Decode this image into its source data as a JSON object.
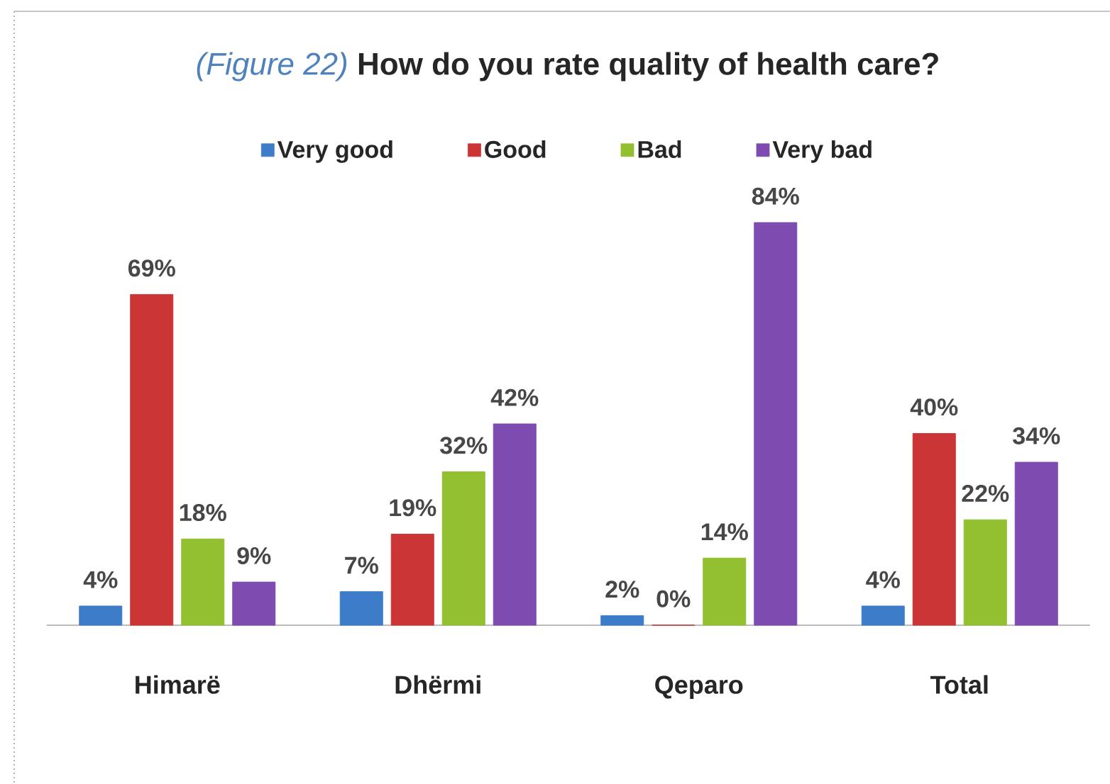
{
  "chart_data": {
    "type": "bar",
    "title": "How do you rate quality of health care?",
    "annotations": [
      "(Figure 22)"
    ],
    "categories": [
      "Himarë",
      "Dhërmi",
      "Qeparo",
      "Total"
    ],
    "series": [
      {
        "name": "Very good",
        "color": "#3d7cc9",
        "values": [
          4,
          7,
          2,
          4
        ],
        "value_labels": [
          "4%",
          "7%",
          "2%",
          "4%"
        ]
      },
      {
        "name": "Good",
        "color": "#cc3535",
        "values": [
          69,
          19,
          0,
          40
        ],
        "value_labels": [
          "69%",
          "19%",
          "0%",
          "40%"
        ]
      },
      {
        "name": "Bad",
        "color": "#92c030",
        "values": [
          18,
          32,
          14,
          22
        ],
        "value_labels": [
          "18%",
          "32%",
          "14%",
          "22%"
        ]
      },
      {
        "name": "Very bad",
        "color": "#7e4cb0",
        "values": [
          9,
          42,
          84,
          34
        ],
        "value_labels": [
          "9%",
          "42%",
          "84%",
          "34%"
        ]
      }
    ],
    "legend": "top"
  }
}
